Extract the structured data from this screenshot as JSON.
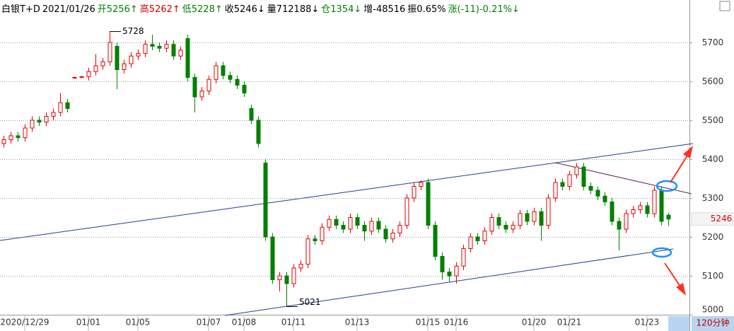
{
  "chart_data": {
    "type": "candlestick",
    "header": [
      {
        "text": "白银T+D",
        "color": "#000000"
      },
      {
        "text": "2021/01/26",
        "color": "#000000"
      },
      {
        "text": "开5256↑",
        "color": "#008000"
      },
      {
        "text": "高5262↑",
        "color": "#d00000"
      },
      {
        "text": "低5228↑",
        "color": "#008000"
      },
      {
        "text": "收5246↓",
        "color": "#000000"
      },
      {
        "text": "量712188↓",
        "color": "#000000"
      },
      {
        "text": "仓1354↓",
        "color": "#008000"
      },
      {
        "text": "增-48516",
        "color": "#000000"
      },
      {
        "text": "振0.65%",
        "color": "#000000"
      },
      {
        "text": "涨(-11)-0.21%↓",
        "color": "#008000"
      }
    ],
    "categories": [
      null,
      null,
      null,
      "2020/12/29",
      null,
      null,
      null,
      null,
      null,
      null,
      null,
      null,
      "01/01",
      null,
      null,
      null,
      null,
      null,
      null,
      "01/05",
      null,
      null,
      null,
      null,
      null,
      null,
      null,
      null,
      null,
      "01/07",
      null,
      null,
      null,
      null,
      "01/08",
      null,
      null,
      null,
      null,
      null,
      null,
      "01/11",
      null,
      null,
      null,
      null,
      null,
      null,
      null,
      null,
      "01/13",
      null,
      null,
      null,
      null,
      null,
      null,
      null,
      null,
      null,
      "01/15",
      null,
      null,
      null,
      "01/16",
      null,
      null,
      null,
      null,
      null,
      null,
      null,
      null,
      null,
      null,
      "01/20",
      null,
      null,
      null,
      null,
      "01/21",
      null,
      null,
      null,
      null,
      null,
      null,
      null,
      null,
      null,
      null,
      "01/23",
      null,
      null,
      null
    ],
    "open": [
      5440,
      5450,
      5460,
      5455,
      5480,
      5500,
      5495,
      5510,
      5520,
      5545,
      5610,
      5610,
      5612,
      5625,
      5640,
      5650,
      5690,
      5630,
      5645,
      5665,
      5672,
      5695,
      5690,
      5685,
      5695,
      5665,
      5710,
      5610,
      5560,
      5575,
      5605,
      5640,
      5615,
      5605,
      5590,
      5530,
      5500,
      5390,
      5200,
      5090,
      5100,
      5080,
      5120,
      5130,
      5195,
      5190,
      5225,
      5245,
      5230,
      5220,
      5250,
      5230,
      5215,
      5240,
      5220,
      5195,
      5210,
      5230,
      5300,
      5330,
      5340,
      5230,
      5150,
      5110,
      5100,
      5125,
      5170,
      5200,
      5190,
      5215,
      5250,
      5230,
      5220,
      5230,
      5260,
      5240,
      5265,
      5230,
      5300,
      5340,
      5330,
      5360,
      5380,
      5330,
      5320,
      5305,
      5290,
      5240,
      5220,
      5260,
      5270,
      5280,
      5260,
      5320,
      5256
    ],
    "high": [
      5460,
      5470,
      5470,
      5490,
      5510,
      5510,
      5520,
      5530,
      5570,
      5555,
      5612,
      5614,
      5635,
      5670,
      5660,
      5728,
      5700,
      5655,
      5675,
      5682,
      5705,
      5720,
      5700,
      5705,
      5705,
      5690,
      5720,
      5620,
      5585,
      5615,
      5650,
      5650,
      5625,
      5615,
      5600,
      5540,
      5510,
      5400,
      5210,
      5110,
      5110,
      5130,
      5140,
      5205,
      5205,
      5235,
      5255,
      5255,
      5240,
      5260,
      5260,
      5240,
      5250,
      5250,
      5230,
      5220,
      5240,
      5310,
      5340,
      5345,
      5350,
      5240,
      5160,
      5120,
      5135,
      5180,
      5210,
      5210,
      5225,
      5260,
      5260,
      5240,
      5240,
      5270,
      5270,
      5275,
      5275,
      5310,
      5350,
      5350,
      5370,
      5390,
      5390,
      5340,
      5330,
      5315,
      5300,
      5250,
      5270,
      5280,
      5290,
      5290,
      5330,
      5330,
      5262
    ],
    "low": [
      5430,
      5440,
      5445,
      5445,
      5470,
      5485,
      5485,
      5500,
      5510,
      5520,
      5608,
      5608,
      5602,
      5615,
      5630,
      5640,
      5580,
      5620,
      5635,
      5655,
      5662,
      5680,
      5675,
      5675,
      5655,
      5655,
      5600,
      5520,
      5550,
      5565,
      5595,
      5605,
      5595,
      5580,
      5560,
      5490,
      5430,
      5190,
      5080,
      5060,
      5021,
      5070,
      5110,
      5120,
      5180,
      5180,
      5215,
      5220,
      5210,
      5210,
      5220,
      5190,
      5205,
      5210,
      5185,
      5185,
      5200,
      5220,
      5290,
      5320,
      5220,
      5140,
      5090,
      5085,
      5080,
      5115,
      5160,
      5180,
      5180,
      5205,
      5220,
      5210,
      5210,
      5220,
      5230,
      5230,
      5190,
      5220,
      5290,
      5320,
      5320,
      5350,
      5320,
      5310,
      5295,
      5280,
      5230,
      5165,
      5210,
      5250,
      5260,
      5250,
      5250,
      5230,
      5228
    ],
    "close": [
      5450,
      5460,
      5455,
      5480,
      5500,
      5495,
      5510,
      5520,
      5545,
      5530,
      5610,
      5612,
      5625,
      5640,
      5650,
      5700,
      5630,
      5645,
      5665,
      5672,
      5695,
      5690,
      5685,
      5695,
      5665,
      5680,
      5610,
      5560,
      5575,
      5605,
      5640,
      5615,
      5605,
      5590,
      5570,
      5500,
      5440,
      5200,
      5090,
      5100,
      5080,
      5120,
      5130,
      5195,
      5190,
      5225,
      5245,
      5230,
      5220,
      5250,
      5230,
      5215,
      5240,
      5220,
      5195,
      5210,
      5230,
      5300,
      5330,
      5340,
      5230,
      5150,
      5110,
      5100,
      5125,
      5170,
      5200,
      5190,
      5215,
      5250,
      5230,
      5220,
      5230,
      5260,
      5240,
      5265,
      5230,
      5300,
      5340,
      5330,
      5360,
      5380,
      5330,
      5320,
      5305,
      5290,
      5240,
      5220,
      5260,
      5270,
      5280,
      5260,
      5320,
      5240,
      5246
    ],
    "up_color": "#e00000",
    "down_color": "#008000",
    "max_label": 5728,
    "min_label": 5021,
    "last_price": 5246,
    "period": "120分钟",
    "ylim": [
      5000,
      5809
    ],
    "yticks": [
      5000,
      5100,
      5200,
      5300,
      5400,
      5500,
      5600,
      5700
    ],
    "grid": true
  }
}
